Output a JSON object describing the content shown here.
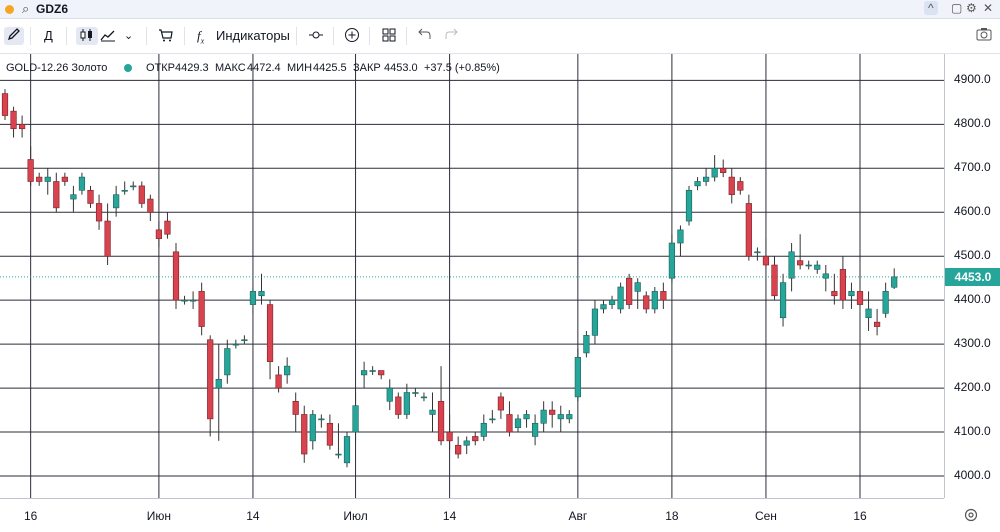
{
  "topbar": {
    "symbol": "GDZ6",
    "search_icon": "search-icon",
    "status_color": "#f5a623",
    "controls": [
      "^",
      "▢",
      "⚙",
      "✕"
    ]
  },
  "toolbar": {
    "draw_icon": "pencil-icon",
    "interval": "Д",
    "chart_type_icons": [
      "candles-icon",
      "area-icon"
    ],
    "dropdown_icon": "chevron-down-icon",
    "cart_icon": "cart-icon",
    "indicators_icon": "fx-icon",
    "indicators_label": "Индикаторы",
    "compare_icon": "compare-icon",
    "add_icon": "plus-circle-icon",
    "layout_icon": "grid-icon",
    "undo_icon": "undo-icon",
    "redo_icon": "redo-icon",
    "snapshot_icon": "camera-icon"
  },
  "legend": {
    "instrument": "GOLD-12.26 Золото",
    "open_label": "ОТКР",
    "open": "4429.3",
    "high_label": "МАКС",
    "high": "4472.4",
    "low_label": "МИН",
    "low": "4425.5",
    "close_label": "ЗАКР",
    "close": "4453.0",
    "change": "+37.5 (+0.85%)"
  },
  "colors": {
    "up": "#26a69a",
    "up_border": "#1b5e57",
    "down": "#d9434f",
    "down_border": "#7a1f26",
    "grid": "#2a2e39",
    "badge": "#26a69a"
  },
  "chart_data": {
    "type": "candlestick",
    "ylim": [
      3950,
      4960
    ],
    "y_ticks": [
      4000,
      4100,
      4200,
      4300,
      4400,
      4500,
      4600,
      4700,
      4800,
      4900
    ],
    "y_tick_labels": [
      "4000.0",
      "4100.0",
      "4200.0",
      "4300.0",
      "4400.0",
      "4500.0",
      "4600.0",
      "4700.0",
      "4800.0",
      "4900.0"
    ],
    "x_labels": [
      "16",
      "Июн",
      "14",
      "Июл",
      "14",
      "Авг",
      "18",
      "Сен",
      "16"
    ],
    "x_label_index": [
      3,
      18,
      29,
      41,
      52,
      67,
      78,
      89,
      100
    ],
    "last_price": 4453.0,
    "last_price_label": "4453.0",
    "candles": [
      [
        4870,
        4880,
        4810,
        4820
      ],
      [
        4830,
        4840,
        4770,
        4790
      ],
      [
        4800,
        4820,
        4770,
        4790
      ],
      [
        4720,
        4750,
        4660,
        4670
      ],
      [
        4680,
        4690,
        4660,
        4670
      ],
      [
        4670,
        4700,
        4640,
        4680
      ],
      [
        4670,
        4690,
        4600,
        4610
      ],
      [
        4680,
        4690,
        4660,
        4670
      ],
      [
        4630,
        4660,
        4600,
        4640
      ],
      [
        4650,
        4690,
        4640,
        4680
      ],
      [
        4650,
        4660,
        4610,
        4620
      ],
      [
        4620,
        4640,
        4560,
        4580
      ],
      [
        4580,
        4620,
        4480,
        4500
      ],
      [
        4610,
        4660,
        4590,
        4640
      ],
      [
        4650,
        4670,
        4640,
        4650
      ],
      [
        4660,
        4670,
        4650,
        4660
      ],
      [
        4660,
        4670,
        4610,
        4620
      ],
      [
        4630,
        4640,
        4580,
        4600
      ],
      [
        4560,
        4580,
        4520,
        4540
      ],
      [
        4580,
        4600,
        4540,
        4550
      ],
      [
        4510,
        4530,
        4380,
        4400
      ],
      [
        4400,
        4410,
        4390,
        4400
      ],
      [
        4400,
        4420,
        4380,
        4400
      ],
      [
        4420,
        4440,
        4320,
        4340
      ],
      [
        4310,
        4320,
        4090,
        4130
      ],
      [
        4200,
        4300,
        4080,
        4220
      ],
      [
        4230,
        4310,
        4210,
        4290
      ],
      [
        4300,
        4310,
        4290,
        4300
      ],
      [
        4310,
        4320,
        4300,
        4310
      ],
      [
        4390,
        4430,
        4370,
        4420
      ],
      [
        4410,
        4460,
        4390,
        4420
      ],
      [
        4390,
        4400,
        4220,
        4260
      ],
      [
        4230,
        4250,
        4190,
        4200
      ],
      [
        4230,
        4270,
        4210,
        4250
      ],
      [
        4170,
        4190,
        4100,
        4140
      ],
      [
        4140,
        4160,
        4030,
        4050
      ],
      [
        4080,
        4150,
        4060,
        4140
      ],
      [
        4130,
        4140,
        4110,
        4130
      ],
      [
        4120,
        4140,
        4060,
        4070
      ],
      [
        4050,
        4120,
        4040,
        4050
      ],
      [
        4030,
        4100,
        4020,
        4090
      ],
      [
        4100,
        4190,
        4080,
        4160
      ],
      [
        4230,
        4260,
        4200,
        4240
      ],
      [
        4240,
        4250,
        4230,
        4240
      ],
      [
        4240,
        4240,
        4220,
        4230
      ],
      [
        4170,
        4220,
        4150,
        4200
      ],
      [
        4180,
        4190,
        4130,
        4140
      ],
      [
        4140,
        4210,
        4130,
        4190
      ],
      [
        4190,
        4200,
        4180,
        4190
      ],
      [
        4180,
        4190,
        4170,
        4180
      ],
      [
        4140,
        4190,
        4100,
        4150
      ],
      [
        4170,
        4250,
        4070,
        4080
      ],
      [
        4100,
        4140,
        4060,
        4080
      ],
      [
        4070,
        4090,
        4040,
        4050
      ],
      [
        4070,
        4090,
        4050,
        4080
      ],
      [
        4090,
        4100,
        4070,
        4080
      ],
      [
        4090,
        4140,
        4080,
        4120
      ],
      [
        4130,
        4150,
        4120,
        4130
      ],
      [
        4180,
        4190,
        4130,
        4150
      ],
      [
        4140,
        4170,
        4090,
        4100
      ],
      [
        4110,
        4140,
        4100,
        4130
      ],
      [
        4130,
        4150,
        4110,
        4140
      ],
      [
        4090,
        4140,
        4070,
        4120
      ],
      [
        4120,
        4170,
        4100,
        4150
      ],
      [
        4150,
        4170,
        4110,
        4140
      ],
      [
        4130,
        4160,
        4100,
        4140
      ],
      [
        4130,
        4150,
        4120,
        4140
      ],
      [
        4180,
        4290,
        4170,
        4270
      ],
      [
        4280,
        4330,
        4270,
        4320
      ],
      [
        4320,
        4400,
        4300,
        4380
      ],
      [
        4380,
        4400,
        4370,
        4390
      ],
      [
        4390,
        4410,
        4380,
        4400
      ],
      [
        4380,
        4440,
        4370,
        4430
      ],
      [
        4450,
        4460,
        4380,
        4390
      ],
      [
        4420,
        4450,
        4380,
        4440
      ],
      [
        4410,
        4420,
        4370,
        4380
      ],
      [
        4380,
        4430,
        4370,
        4420
      ],
      [
        4420,
        4440,
        4380,
        4400
      ],
      [
        4450,
        4550,
        4440,
        4530
      ],
      [
        4530,
        4570,
        4500,
        4560
      ],
      [
        4580,
        4660,
        4570,
        4650
      ],
      [
        4660,
        4680,
        4650,
        4670
      ],
      [
        4670,
        4700,
        4660,
        4680
      ],
      [
        4680,
        4730,
        4670,
        4700
      ],
      [
        4700,
        4720,
        4680,
        4690
      ],
      [
        4680,
        4700,
        4620,
        4640
      ],
      [
        4670,
        4680,
        4640,
        4650
      ],
      [
        4620,
        4640,
        4490,
        4500
      ],
      [
        4510,
        4520,
        4490,
        4510
      ],
      [
        4500,
        4540,
        4470,
        4480
      ],
      [
        4480,
        4500,
        4400,
        4410
      ],
      [
        4360,
        4460,
        4340,
        4440
      ],
      [
        4450,
        4530,
        4420,
        4510
      ],
      [
        4490,
        4550,
        4470,
        4480
      ],
      [
        4480,
        4490,
        4470,
        4480
      ],
      [
        4470,
        4490,
        4460,
        4480
      ],
      [
        4450,
        4480,
        4420,
        4460
      ],
      [
        4420,
        4460,
        4390,
        4410
      ],
      [
        4470,
        4500,
        4380,
        4400
      ],
      [
        4410,
        4440,
        4380,
        4420
      ],
      [
        4420,
        4430,
        4370,
        4390
      ],
      [
        4360,
        4420,
        4330,
        4380
      ],
      [
        4350,
        4380,
        4320,
        4340
      ],
      [
        4370,
        4440,
        4360,
        4420
      ],
      [
        4429.3,
        4472.4,
        4425.5,
        4453
      ]
    ]
  }
}
